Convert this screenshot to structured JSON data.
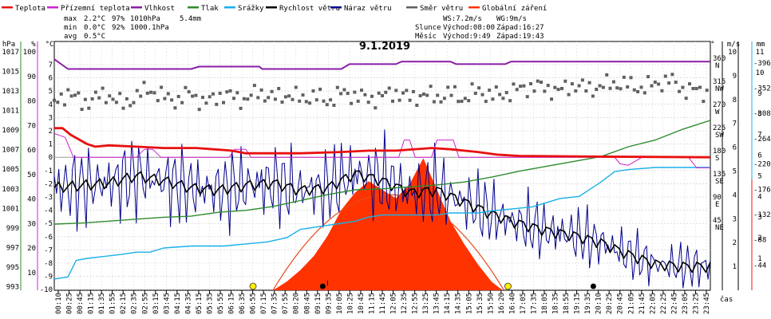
{
  "chart_data": {
    "type": "line",
    "title": "9.1.2019",
    "xlabel": "čas",
    "legend": [
      {
        "name": "Teplota",
        "color": "#e81010"
      },
      {
        "name": "Přízemní teplota",
        "color": "#cc22cc"
      },
      {
        "name": "Vlhkost",
        "color": "#8a1ea8"
      },
      {
        "name": "Tlak",
        "color": "#2e8b2e"
      },
      {
        "name": "Srážky",
        "color": "#18b0e8"
      },
      {
        "name": "Rychlost větru",
        "color": "#000000"
      },
      {
        "name": "Náraz větru",
        "color": "#00008b"
      },
      {
        "name": "Směr větru",
        "color": "#606060"
      },
      {
        "name": "Globální záření",
        "color": "#ff3300"
      }
    ],
    "stats": {
      "max": {
        "label": "max",
        "temp": "2.2°C",
        "hum": "97%",
        "press": "1010hPa",
        "rain": "5.4mm"
      },
      "min": {
        "label": "min",
        "temp": "0.0°C",
        "hum": "92%",
        "press": "1000.1hPa"
      },
      "avg": {
        "label": "avg",
        "temp": "0.5°C"
      }
    },
    "wind_info": {
      "ws": "WS:7.2m/s",
      "wg": "WG:9m/s"
    },
    "sun_moon": [
      {
        "label": "Slunce",
        "rise": "Východ:08:00",
        "set": "Západ:16:27"
      },
      {
        "label": "Měsíc",
        "rise": "Východ:9:49",
        "set": "Západ:19:43"
      }
    ],
    "axes": {
      "hpa": {
        "unit": "hPa",
        "ticks": [
          "1017",
          "1015",
          "1013",
          "1011",
          "1009",
          "1007",
          "1005",
          "1003",
          "1001",
          "999",
          "997",
          "995",
          "993"
        ],
        "color": "#2e8b2e"
      },
      "pct": {
        "unit": "%",
        "ticks": [
          "100",
          "90",
          "80",
          "70",
          "60",
          "50",
          "40",
          "30",
          "20",
          "10"
        ],
        "color": "#cc22cc"
      },
      "c": {
        "unit": "°C",
        "ticks": [
          "7",
          "6",
          "5",
          "4",
          "3",
          "2",
          "1",
          "0",
          "-1",
          "-2",
          "-3",
          "-4",
          "-5",
          "-6",
          "-7",
          "-8",
          "-9",
          "-10"
        ],
        "color": "#e81010"
      },
      "deg": {
        "unit": "°",
        "ticks": [
          {
            "v": "360",
            "l": "N"
          },
          {
            "v": "315",
            "l": "NW"
          },
          {
            "v": "270",
            "l": "W"
          },
          {
            "v": "225",
            "l": "SW"
          },
          {
            "v": "180",
            "l": "S"
          },
          {
            "v": "135",
            "l": "SE"
          },
          {
            "v": "90",
            "l": "E"
          },
          {
            "v": "45",
            "l": "NE"
          }
        ],
        "color": "#000000"
      },
      "ms": {
        "unit": "m/s",
        "ticks": [
          "10",
          "9",
          "8",
          "7",
          "6",
          "5",
          "4",
          "3",
          "2",
          "1"
        ],
        "color": "#000000"
      },
      "mm": {
        "unit": "mm",
        "ticks": [
          "11",
          "10",
          "9",
          "8",
          "7",
          "6",
          "5",
          "4",
          "3",
          "2",
          "1"
        ],
        "color": "#18b0e8"
      },
      "wm2": {
        "ticks": [
          "396",
          "352",
          "308",
          "264",
          "220",
          "176",
          "132",
          "88",
          "44"
        ],
        "color": "#e81010"
      }
    },
    "x_ticks": [
      "00:10",
      "00:25",
      "00:45",
      "01:15",
      "01:35",
      "01:55",
      "02:15",
      "02:35",
      "02:55",
      "03:15",
      "03:45",
      "04:15",
      "04:35",
      "05:15",
      "05:35",
      "05:55",
      "06:15",
      "06:35",
      "06:55",
      "07:15",
      "07:35",
      "07:55",
      "08:20",
      "08:45",
      "09:15",
      "09:35",
      "10:05",
      "10:25",
      "10:45",
      "11:15",
      "11:45",
      "12:05",
      "12:35",
      "12:55",
      "13:25",
      "13:45",
      "14:15",
      "14:35",
      "15:05",
      "15:35",
      "15:50",
      "16:20",
      "16:40",
      "17:05",
      "17:35",
      "18:05",
      "18:35",
      "18:55",
      "19:15",
      "19:35",
      "20:10",
      "20:25",
      "20:45",
      "21:05",
      "21:45",
      "22:05",
      "22:25",
      "22:45",
      "23:05",
      "23:25",
      "23:45"
    ],
    "series": {
      "humidity": {
        "unit": "%",
        "points": [
          [
            0,
            97
          ],
          [
            0.5,
            93
          ],
          [
            5,
            93
          ],
          [
            5.3,
            94
          ],
          [
            7.5,
            94
          ],
          [
            7.6,
            93
          ],
          [
            10.5,
            93
          ],
          [
            10.8,
            95
          ],
          [
            12.5,
            95
          ],
          [
            12.7,
            96
          ],
          [
            14.5,
            96
          ],
          [
            14.7,
            95
          ],
          [
            16.5,
            95
          ],
          [
            16.7,
            96
          ],
          [
            24,
            96
          ]
        ]
      },
      "temperature": {
        "unit": "°C",
        "points": [
          [
            0,
            2.2
          ],
          [
            0.3,
            2.2
          ],
          [
            0.6,
            1.7
          ],
          [
            1.2,
            1.0
          ],
          [
            1.5,
            0.8
          ],
          [
            2.0,
            0.9
          ],
          [
            3.0,
            0.8
          ],
          [
            4.0,
            0.7
          ],
          [
            5.2,
            0.7
          ],
          [
            6.5,
            0.5
          ],
          [
            7.0,
            0.3
          ],
          [
            8.0,
            0.3
          ],
          [
            9.0,
            0.3
          ],
          [
            10.5,
            0.4
          ],
          [
            11.5,
            0.5
          ],
          [
            12.5,
            0.5
          ],
          [
            13.8,
            0.7
          ],
          [
            14.5,
            0.6
          ],
          [
            15.5,
            0.4
          ],
          [
            16.2,
            0.2
          ],
          [
            17.0,
            0.1
          ],
          [
            20.0,
            0.05
          ],
          [
            24,
            0.0
          ]
        ]
      },
      "ground_temperature": {
        "unit": "°C",
        "points": [
          [
            0,
            1.8
          ],
          [
            0.4,
            1.5
          ],
          [
            0.7,
            0.0
          ],
          [
            1.0,
            0.0
          ],
          [
            3.0,
            0.0
          ],
          [
            3.3,
            0.6
          ],
          [
            3.6,
            0.6
          ],
          [
            3.9,
            0.0
          ],
          [
            6.4,
            0.0
          ],
          [
            6.6,
            0.6
          ],
          [
            7.0,
            0.6
          ],
          [
            7.2,
            0.0
          ],
          [
            12.6,
            0.0
          ],
          [
            12.8,
            1.3
          ],
          [
            13.0,
            1.3
          ],
          [
            13.2,
            0.0
          ],
          [
            13.8,
            0.0
          ],
          [
            14.0,
            1.3
          ],
          [
            14.6,
            1.3
          ],
          [
            14.8,
            0.0
          ],
          [
            20.5,
            0.0
          ],
          [
            20.7,
            -0.5
          ],
          [
            21.0,
            -0.6
          ],
          [
            21.5,
            0.0
          ],
          [
            23.2,
            0.0
          ],
          [
            23.5,
            -0.8
          ],
          [
            24,
            -0.8
          ]
        ]
      },
      "pressure": {
        "unit": "hPa",
        "points": [
          [
            0,
            999.4
          ],
          [
            1,
            999.5
          ],
          [
            2,
            999.7
          ],
          [
            3,
            999.9
          ],
          [
            4,
            1000.1
          ],
          [
            5,
            1000.2
          ],
          [
            6,
            1000.6
          ],
          [
            7,
            1000.8
          ],
          [
            8,
            1001.2
          ],
          [
            9,
            1001.8
          ],
          [
            10,
            1002.4
          ],
          [
            11,
            1002.9
          ],
          [
            12,
            1003.0
          ],
          [
            13,
            1003.2
          ],
          [
            14,
            1003.4
          ],
          [
            15,
            1003.7
          ],
          [
            16,
            1004.2
          ],
          [
            17,
            1004.8
          ],
          [
            18,
            1005.3
          ],
          [
            19,
            1005.8
          ],
          [
            20,
            1006.3
          ],
          [
            21,
            1007.3
          ],
          [
            22,
            1008.0
          ],
          [
            23,
            1009.1
          ],
          [
            24,
            1010.0
          ]
        ]
      },
      "precipitation": {
        "unit": "mm",
        "points": [
          [
            0,
            0
          ],
          [
            0.5,
            0.1
          ],
          [
            0.8,
            0.9
          ],
          [
            1.2,
            1.0
          ],
          [
            2.5,
            1.2
          ],
          [
            3.0,
            1.3
          ],
          [
            3.5,
            1.3
          ],
          [
            4.0,
            1.5
          ],
          [
            5.0,
            1.6
          ],
          [
            6.2,
            1.6
          ],
          [
            7.0,
            1.7
          ],
          [
            7.8,
            1.8
          ],
          [
            8.5,
            2.0
          ],
          [
            9.0,
            2.4
          ],
          [
            9.5,
            2.5
          ],
          [
            10.0,
            2.6
          ],
          [
            10.5,
            2.7
          ],
          [
            11.0,
            2.8
          ],
          [
            11.5,
            3.0
          ],
          [
            12.0,
            3.1
          ],
          [
            13.0,
            3.1
          ],
          [
            14.0,
            3.1
          ],
          [
            14.5,
            3.2
          ],
          [
            15.5,
            3.2
          ],
          [
            16.0,
            3.3
          ],
          [
            16.8,
            3.4
          ],
          [
            17.5,
            3.5
          ],
          [
            18.5,
            3.9
          ],
          [
            19.2,
            4.0
          ],
          [
            20.0,
            4.7
          ],
          [
            20.5,
            5.2
          ],
          [
            21.0,
            5.3
          ],
          [
            22.0,
            5.4
          ],
          [
            24,
            5.4
          ]
        ]
      },
      "wind_speed": {
        "unit": "m/s",
        "points": [
          [
            0,
            4.3
          ],
          [
            1,
            4.4
          ],
          [
            2,
            4.5
          ],
          [
            3,
            4.8
          ],
          [
            4,
            4.6
          ],
          [
            5,
            4.3
          ],
          [
            6,
            4.2
          ],
          [
            7,
            4.4
          ],
          [
            8,
            4.5
          ],
          [
            9,
            4.2
          ],
          [
            10,
            4.3
          ],
          [
            11,
            4.9
          ],
          [
            12,
            4.6
          ],
          [
            13,
            4.1
          ],
          [
            14,
            4.2
          ],
          [
            15,
            3.7
          ],
          [
            16,
            3.2
          ],
          [
            17,
            2.8
          ],
          [
            18,
            2.5
          ],
          [
            19,
            2.3
          ],
          [
            20,
            2.0
          ],
          [
            21,
            1.5
          ],
          [
            22,
            1.1
          ],
          [
            23,
            1.0
          ],
          [
            24,
            1.0
          ]
        ]
      },
      "wind_direction": {
        "unit": "°",
        "points": [
          [
            0,
            270
          ],
          [
            0.5,
            295
          ],
          [
            1,
            272
          ],
          [
            1.5,
            283
          ],
          [
            2,
            290
          ],
          [
            2.5,
            268
          ],
          [
            3,
            287
          ],
          [
            3.5,
            300
          ],
          [
            4,
            284
          ],
          [
            4.5,
            278
          ],
          [
            5,
            293
          ],
          [
            5.5,
            271
          ],
          [
            6,
            288
          ],
          [
            6.5,
            286
          ],
          [
            7,
            279
          ],
          [
            7.5,
            296
          ],
          [
            8,
            282
          ],
          [
            8.5,
            290
          ],
          [
            9,
            281
          ],
          [
            9.5,
            287
          ],
          [
            10,
            276
          ],
          [
            10.5,
            292
          ],
          [
            11,
            288
          ],
          [
            11.5,
            280
          ],
          [
            12,
            286
          ],
          [
            12.5,
            294
          ],
          [
            13,
            282
          ],
          [
            13.5,
            290
          ],
          [
            14,
            284
          ],
          [
            14.5,
            292
          ],
          [
            15,
            281
          ],
          [
            15.5,
            298
          ],
          [
            16,
            286
          ],
          [
            16.5,
            291
          ],
          [
            17,
            299
          ],
          [
            17.5,
            306
          ],
          [
            18,
            302
          ],
          [
            18.5,
            296
          ],
          [
            19,
            309
          ],
          [
            19.5,
            300
          ],
          [
            20,
            305
          ],
          [
            20.5,
            312
          ],
          [
            21,
            308
          ],
          [
            21.5,
            302
          ],
          [
            22,
            310
          ],
          [
            22.5,
            318
          ],
          [
            23,
            300
          ],
          [
            23.5,
            297
          ],
          [
            24,
            292
          ]
        ]
      },
      "solar_radiation": {
        "unit": "W/m²",
        "points": [
          [
            8.0,
            0
          ],
          [
            8.5,
            15
          ],
          [
            9.0,
            35
          ],
          [
            9.5,
            60
          ],
          [
            10.0,
            95
          ],
          [
            10.5,
            140
          ],
          [
            11.0,
            170
          ],
          [
            11.5,
            190
          ],
          [
            12.0,
            175
          ],
          [
            12.5,
            160
          ],
          [
            13.0,
            185
          ],
          [
            13.5,
            230
          ],
          [
            14.0,
            175
          ],
          [
            14.5,
            120
          ],
          [
            15.0,
            80
          ],
          [
            15.5,
            45
          ],
          [
            16.0,
            15
          ],
          [
            16.4,
            0
          ]
        ]
      }
    }
  }
}
